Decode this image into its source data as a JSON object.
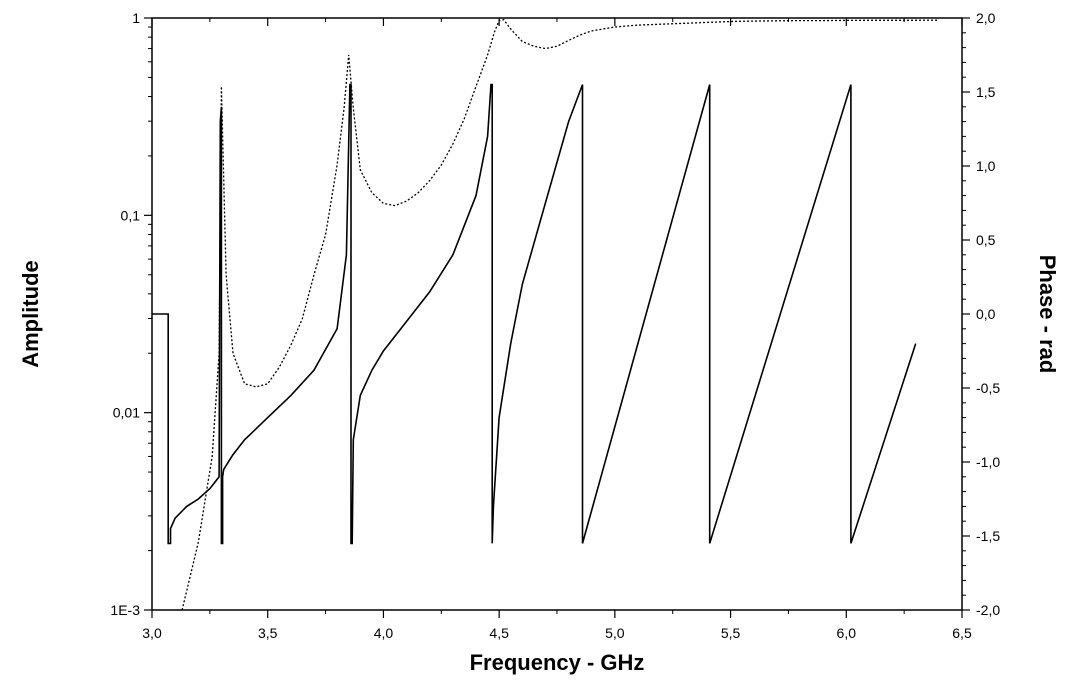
{
  "chart_data": {
    "type": "line",
    "xlabel": "Frequency - GHz",
    "ylabel": "Amplitude",
    "y2label": "Phase - rad",
    "xlim": [
      3.0,
      6.5
    ],
    "ylim": [
      0.001,
      1
    ],
    "yscale": "log",
    "y2lim": [
      -2.0,
      2.0
    ],
    "grid": false,
    "x_ticks": [
      "3,0",
      "3,5",
      "4,0",
      "4,5",
      "5,0",
      "5,5",
      "6,0",
      "6,5"
    ],
    "x_tick_values": [
      3.0,
      3.5,
      4.0,
      4.5,
      5.0,
      5.5,
      6.0,
      6.5
    ],
    "y_ticks": [
      "1E-3",
      "0,01",
      "0,1",
      "1"
    ],
    "y_tick_values": [
      0.001,
      0.01,
      0.1,
      1
    ],
    "y2_ticks": [
      "-2,0",
      "-1,5",
      "-1,0",
      "-0,5",
      "0,0",
      "0,5",
      "1,0",
      "1,5",
      "2,0"
    ],
    "y2_tick_values": [
      -2.0,
      -1.5,
      -1.0,
      -0.5,
      0.0,
      0.5,
      1.0,
      1.5,
      2.0
    ],
    "series": [
      {
        "axis": "left",
        "style": "dotted",
        "color": "#000000",
        "x": [
          3.13,
          3.2,
          3.26,
          3.29,
          3.3,
          3.32,
          3.35,
          3.4,
          3.45,
          3.5,
          3.55,
          3.6,
          3.65,
          3.7,
          3.75,
          3.8,
          3.83,
          3.85,
          3.87,
          3.9,
          3.95,
          4.0,
          4.05,
          4.1,
          4.15,
          4.2,
          4.25,
          4.3,
          4.35,
          4.4,
          4.45,
          4.48,
          4.5,
          4.52,
          4.55,
          4.6,
          4.65,
          4.7,
          4.75,
          4.8,
          4.85,
          4.9,
          5.0,
          5.1,
          5.2,
          5.3,
          5.4,
          5.5,
          5.6,
          5.7,
          5.8,
          5.9,
          6.0,
          6.1,
          6.2,
          6.3,
          6.4
        ],
        "y": [
          0.001,
          0.0022,
          0.006,
          0.02,
          0.45,
          0.05,
          0.02,
          0.014,
          0.0135,
          0.014,
          0.017,
          0.022,
          0.03,
          0.05,
          0.08,
          0.18,
          0.35,
          0.65,
          0.35,
          0.17,
          0.13,
          0.115,
          0.112,
          0.118,
          0.13,
          0.15,
          0.18,
          0.23,
          0.31,
          0.45,
          0.65,
          0.85,
          0.97,
          0.98,
          0.88,
          0.76,
          0.72,
          0.7,
          0.72,
          0.77,
          0.82,
          0.86,
          0.9,
          0.92,
          0.93,
          0.94,
          0.95,
          0.96,
          0.965,
          0.968,
          0.97,
          0.97,
          0.972,
          0.973,
          0.973,
          0.973,
          0.975
        ]
      },
      {
        "axis": "right",
        "style": "solid",
        "color": "#000000",
        "x": [
          3.0,
          3.07,
          3.07,
          3.08,
          3.08,
          3.1,
          3.15,
          3.2,
          3.25,
          3.29,
          3.295,
          3.3,
          3.3,
          3.305,
          3.305,
          3.31,
          3.35,
          3.4,
          3.5,
          3.6,
          3.7,
          3.8,
          3.84,
          3.855,
          3.86,
          3.86,
          3.865,
          3.87,
          3.9,
          3.95,
          4.0,
          4.1,
          4.2,
          4.3,
          4.4,
          4.45,
          4.465,
          4.47,
          4.47,
          4.475,
          4.5,
          4.55,
          4.6,
          4.7,
          4.8,
          4.86,
          4.86,
          5.41,
          5.41,
          6.02,
          6.02,
          6.3
        ],
        "y": [
          0.0,
          0.0,
          -1.55,
          -1.55,
          -1.45,
          -1.38,
          -1.3,
          -1.25,
          -1.18,
          -1.1,
          1.3,
          1.4,
          -1.55,
          -1.55,
          -1.1,
          -1.05,
          -0.95,
          -0.85,
          -0.7,
          -0.55,
          -0.38,
          -0.1,
          0.4,
          1.55,
          1.55,
          -1.55,
          -1.55,
          -0.85,
          -0.55,
          -0.38,
          -0.25,
          -0.05,
          0.15,
          0.4,
          0.8,
          1.2,
          1.55,
          1.55,
          -1.55,
          -1.3,
          -0.7,
          -0.2,
          0.2,
          0.75,
          1.3,
          1.55,
          -1.55,
          1.55,
          -1.55,
          1.55,
          -1.55,
          -0.2
        ]
      }
    ]
  }
}
